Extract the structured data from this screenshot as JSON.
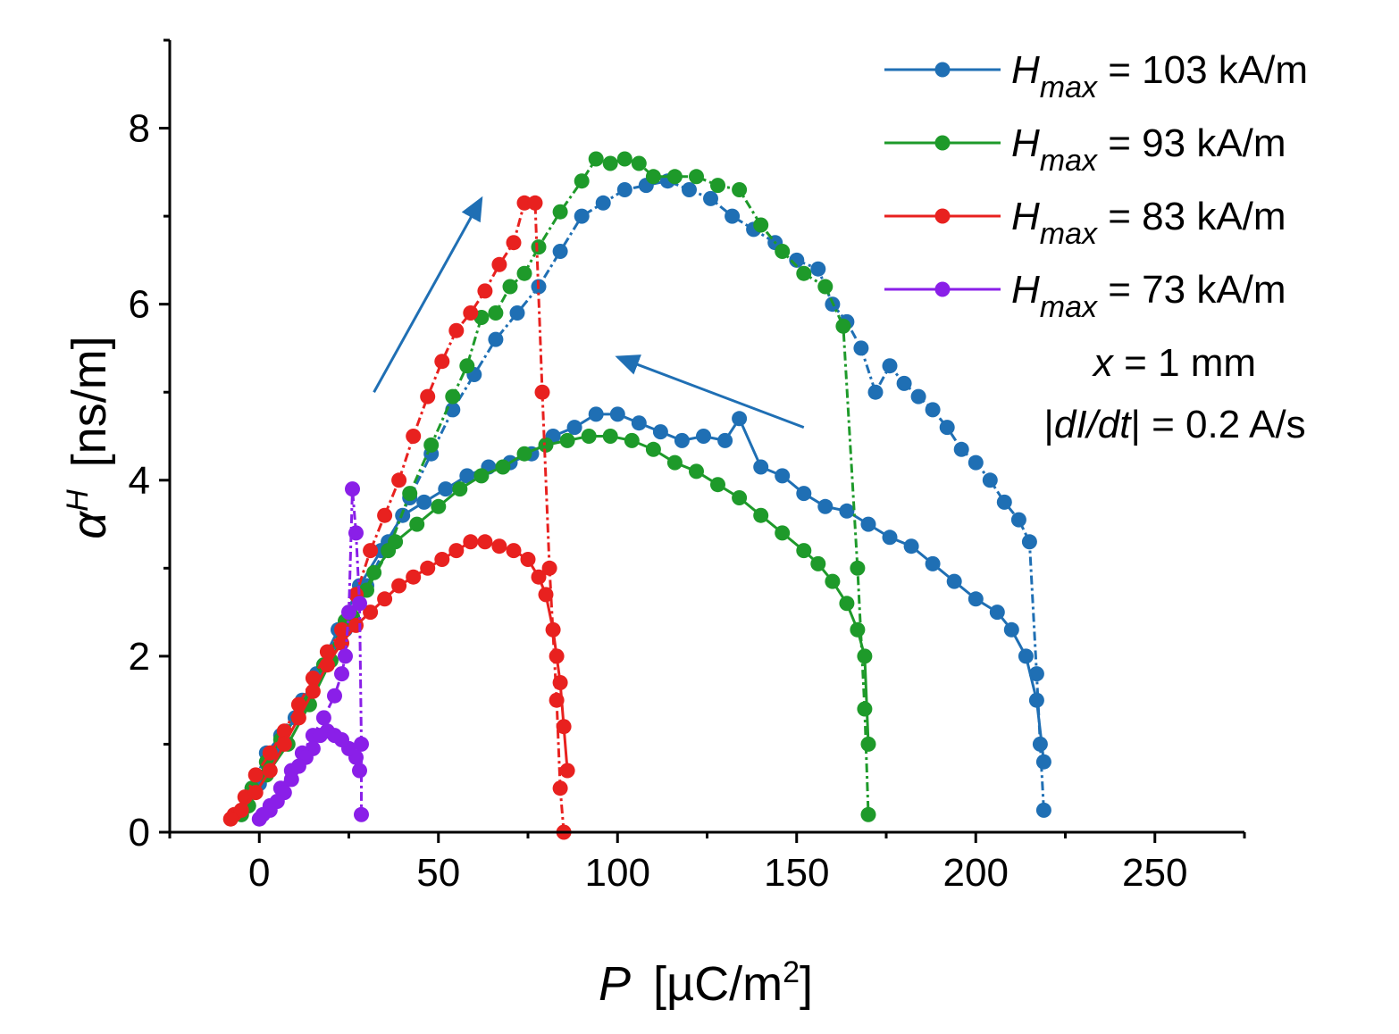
{
  "chart_data": {
    "type": "scatter",
    "xlabel": {
      "symbol": "P",
      "unit_prefix": "[µC/m",
      "unit_exp": "2",
      "unit_suffix": "]"
    },
    "ylabel": {
      "symbol": "α",
      "superscript": "H",
      "unit": "[ns/m]"
    },
    "xlim": [
      -25,
      275
    ],
    "ylim": [
      0,
      9
    ],
    "xticks": [
      0,
      50,
      100,
      150,
      200,
      250
    ],
    "yticks": [
      0,
      2,
      4,
      6,
      8
    ],
    "xtick_labels": [
      "0",
      "50",
      "100",
      "150",
      "200",
      "250"
    ],
    "ytick_labels": [
      "0",
      "2",
      "4",
      "6",
      "8"
    ],
    "legend_position": "top-right",
    "annotations": {
      "x_symbol": "x",
      "x_rest": " = 1 mm",
      "rate_pre": "|",
      "rate_italic": "dI/dt",
      "rate_rest": "| = 0.2 A/s"
    },
    "arrows": [
      {
        "from": [
          32,
          5.0
        ],
        "to": [
          62,
          7.2
        ]
      },
      {
        "from": [
          152,
          4.6
        ],
        "to": [
          100,
          5.4
        ]
      }
    ],
    "series": [
      {
        "name": "H_max = 103 kA/m",
        "legend_symbol": "H",
        "legend_sub": "max",
        "legend_rest": " = 103 kA/m",
        "color": "#1f6fb4",
        "ascending": [
          [
            -5,
            0.2
          ],
          [
            -2,
            0.5
          ],
          [
            2,
            0.9
          ],
          [
            6,
            1.1
          ],
          [
            12,
            1.5
          ],
          [
            18,
            1.9
          ],
          [
            24,
            2.3
          ],
          [
            30,
            2.8
          ],
          [
            36,
            3.3
          ],
          [
            42,
            3.8
          ],
          [
            48,
            4.3
          ],
          [
            54,
            4.8
          ],
          [
            60,
            5.2
          ],
          [
            66,
            5.6
          ],
          [
            72,
            5.9
          ],
          [
            78,
            6.2
          ],
          [
            84,
            6.6
          ],
          [
            90,
            7.0
          ],
          [
            96,
            7.15
          ],
          [
            102,
            7.3
          ],
          [
            108,
            7.35
          ],
          [
            114,
            7.4
          ],
          [
            120,
            7.3
          ],
          [
            126,
            7.2
          ],
          [
            132,
            7.0
          ],
          [
            138,
            6.85
          ],
          [
            144,
            6.7
          ],
          [
            150,
            6.5
          ],
          [
            156,
            6.4
          ],
          [
            160,
            6.0
          ],
          [
            164,
            5.8
          ],
          [
            168,
            5.5
          ],
          [
            172,
            5.0
          ],
          [
            176,
            5.3
          ],
          [
            180,
            5.1
          ],
          [
            184,
            4.95
          ],
          [
            188,
            4.8
          ],
          [
            192,
            4.6
          ],
          [
            196,
            4.35
          ],
          [
            200,
            4.2
          ],
          [
            204,
            4.0
          ],
          [
            208,
            3.75
          ],
          [
            212,
            3.55
          ],
          [
            215,
            3.3
          ],
          [
            217,
            1.8
          ],
          [
            218,
            1.0
          ],
          [
            219,
            0.25
          ]
        ],
        "descending": [
          [
            219,
            0.8
          ],
          [
            217,
            1.5
          ],
          [
            214,
            2.0
          ],
          [
            210,
            2.3
          ],
          [
            206,
            2.5
          ],
          [
            200,
            2.65
          ],
          [
            194,
            2.85
          ],
          [
            188,
            3.05
          ],
          [
            182,
            3.25
          ],
          [
            176,
            3.35
          ],
          [
            170,
            3.5
          ],
          [
            164,
            3.65
          ],
          [
            158,
            3.7
          ],
          [
            152,
            3.85
          ],
          [
            146,
            4.05
          ],
          [
            140,
            4.15
          ],
          [
            134,
            4.7
          ],
          [
            130,
            4.45
          ],
          [
            124,
            4.5
          ],
          [
            118,
            4.45
          ],
          [
            112,
            4.55
          ],
          [
            106,
            4.65
          ],
          [
            100,
            4.75
          ],
          [
            94,
            4.75
          ],
          [
            88,
            4.6
          ],
          [
            82,
            4.5
          ],
          [
            76,
            4.3
          ],
          [
            70,
            4.2
          ],
          [
            64,
            4.15
          ],
          [
            58,
            4.05
          ],
          [
            52,
            3.9
          ],
          [
            46,
            3.75
          ],
          [
            40,
            3.6
          ],
          [
            34,
            3.2
          ],
          [
            28,
            2.8
          ],
          [
            22,
            2.3
          ],
          [
            16,
            1.8
          ],
          [
            10,
            1.3
          ],
          [
            4,
            0.9
          ],
          [
            0,
            0.55
          ],
          [
            -3,
            0.3
          ]
        ]
      },
      {
        "name": "H_max = 93 kA/m",
        "legend_symbol": "H",
        "legend_sub": "max",
        "legend_rest": " = 93 kA/m",
        "color": "#1e9a2a",
        "ascending": [
          [
            -5,
            0.2
          ],
          [
            -2,
            0.5
          ],
          [
            2,
            0.8
          ],
          [
            6,
            1.05
          ],
          [
            12,
            1.45
          ],
          [
            18,
            1.9
          ],
          [
            24,
            2.4
          ],
          [
            30,
            2.75
          ],
          [
            36,
            3.2
          ],
          [
            42,
            3.85
          ],
          [
            48,
            4.4
          ],
          [
            54,
            4.95
          ],
          [
            58,
            5.3
          ],
          [
            62,
            5.85
          ],
          [
            66,
            5.9
          ],
          [
            70,
            6.2
          ],
          [
            74,
            6.35
          ],
          [
            78,
            6.65
          ],
          [
            84,
            7.05
          ],
          [
            90,
            7.4
          ],
          [
            94,
            7.65
          ],
          [
            98,
            7.6
          ],
          [
            102,
            7.65
          ],
          [
            106,
            7.6
          ],
          [
            110,
            7.45
          ],
          [
            116,
            7.45
          ],
          [
            122,
            7.45
          ],
          [
            128,
            7.35
          ],
          [
            134,
            7.3
          ],
          [
            140,
            6.9
          ],
          [
            146,
            6.6
          ],
          [
            152,
            6.35
          ],
          [
            158,
            6.2
          ],
          [
            163,
            5.75
          ],
          [
            167,
            3.0
          ],
          [
            169,
            1.4
          ],
          [
            170,
            0.2
          ]
        ],
        "descending": [
          [
            170,
            1.0
          ],
          [
            169,
            2.0
          ],
          [
            167,
            2.3
          ],
          [
            164,
            2.6
          ],
          [
            160,
            2.85
          ],
          [
            156,
            3.05
          ],
          [
            152,
            3.2
          ],
          [
            146,
            3.4
          ],
          [
            140,
            3.6
          ],
          [
            134,
            3.8
          ],
          [
            128,
            3.95
          ],
          [
            122,
            4.1
          ],
          [
            116,
            4.2
          ],
          [
            110,
            4.35
          ],
          [
            104,
            4.45
          ],
          [
            98,
            4.5
          ],
          [
            92,
            4.5
          ],
          [
            86,
            4.45
          ],
          [
            80,
            4.4
          ],
          [
            74,
            4.3
          ],
          [
            68,
            4.15
          ],
          [
            62,
            4.05
          ],
          [
            56,
            3.9
          ],
          [
            50,
            3.7
          ],
          [
            44,
            3.5
          ],
          [
            38,
            3.3
          ],
          [
            32,
            2.95
          ],
          [
            26,
            2.45
          ],
          [
            20,
            1.95
          ],
          [
            14,
            1.45
          ],
          [
            8,
            1.0
          ],
          [
            2,
            0.65
          ],
          [
            -3,
            0.3
          ]
        ]
      },
      {
        "name": "H_max = 83 kA/m",
        "legend_symbol": "H",
        "legend_sub": "max",
        "legend_rest": " = 83 kA/m",
        "color": "#e8211f",
        "ascending": [
          [
            -7,
            0.2
          ],
          [
            -4,
            0.4
          ],
          [
            -1,
            0.65
          ],
          [
            3,
            0.9
          ],
          [
            7,
            1.15
          ],
          [
            11,
            1.45
          ],
          [
            15,
            1.75
          ],
          [
            19,
            2.05
          ],
          [
            23,
            2.3
          ],
          [
            27,
            2.7
          ],
          [
            31,
            3.2
          ],
          [
            35,
            3.6
          ],
          [
            39,
            4.0
          ],
          [
            43,
            4.5
          ],
          [
            47,
            4.95
          ],
          [
            51,
            5.35
          ],
          [
            55,
            5.7
          ],
          [
            59,
            5.9
          ],
          [
            63,
            6.15
          ],
          [
            67,
            6.45
          ],
          [
            71,
            6.7
          ],
          [
            74,
            7.15
          ],
          [
            77,
            7.15
          ],
          [
            79,
            5.0
          ],
          [
            81,
            3.0
          ],
          [
            83,
            1.5
          ],
          [
            84,
            0.5
          ],
          [
            85,
            0
          ]
        ],
        "descending": [
          [
            86,
            0.7
          ],
          [
            85,
            1.2
          ],
          [
            84,
            1.7
          ],
          [
            83,
            2.0
          ],
          [
            82,
            2.3
          ],
          [
            80,
            2.7
          ],
          [
            78,
            2.9
          ],
          [
            75,
            3.1
          ],
          [
            71,
            3.2
          ],
          [
            67,
            3.25
          ],
          [
            63,
            3.3
          ],
          [
            59,
            3.3
          ],
          [
            55,
            3.2
          ],
          [
            51,
            3.1
          ],
          [
            47,
            3.0
          ],
          [
            43,
            2.9
          ],
          [
            39,
            2.8
          ],
          [
            35,
            2.65
          ],
          [
            31,
            2.5
          ],
          [
            27,
            2.35
          ],
          [
            23,
            2.15
          ],
          [
            19,
            1.9
          ],
          [
            15,
            1.6
          ],
          [
            11,
            1.3
          ],
          [
            7,
            1.0
          ],
          [
            3,
            0.7
          ],
          [
            -1,
            0.45
          ],
          [
            -5,
            0.25
          ],
          [
            -8,
            0.15
          ]
        ]
      },
      {
        "name": "H_max = 73 kA/m",
        "legend_symbol": "H",
        "legend_sub": "max",
        "legend_rest": " = 73 kA/m",
        "color": "#8a1fe8",
        "ascending": [
          [
            0,
            0.15
          ],
          [
            3,
            0.3
          ],
          [
            6,
            0.5
          ],
          [
            9,
            0.7
          ],
          [
            12,
            0.9
          ],
          [
            15,
            1.1
          ],
          [
            18,
            1.3
          ],
          [
            21,
            1.55
          ],
          [
            23,
            1.8
          ],
          [
            24,
            2.0
          ],
          [
            25,
            2.5
          ],
          [
            26,
            3.9
          ],
          [
            27,
            3.4
          ],
          [
            28,
            2.6
          ],
          [
            28.5,
            1.0
          ],
          [
            28.5,
            0.2
          ]
        ],
        "descending": [
          [
            28,
            0.7
          ],
          [
            27,
            0.85
          ],
          [
            25,
            0.95
          ],
          [
            23,
            1.05
          ],
          [
            21,
            1.1
          ],
          [
            19,
            1.15
          ],
          [
            17,
            1.1
          ],
          [
            15,
            0.95
          ],
          [
            13,
            0.85
          ],
          [
            11,
            0.75
          ],
          [
            9,
            0.6
          ],
          [
            7,
            0.45
          ],
          [
            5,
            0.35
          ],
          [
            3,
            0.25
          ],
          [
            1,
            0.2
          ]
        ]
      }
    ]
  }
}
